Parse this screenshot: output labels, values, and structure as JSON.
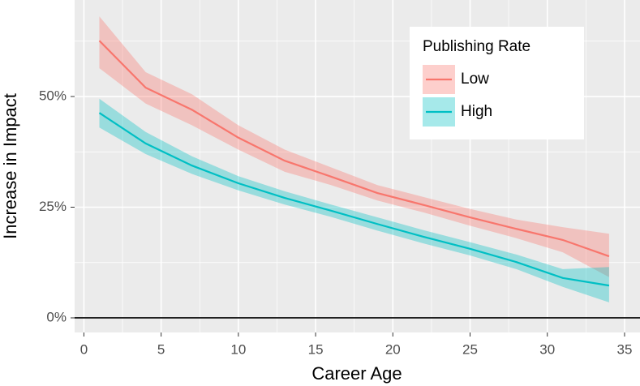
{
  "chart_data": {
    "type": "line",
    "x_label": "Career Age",
    "y_label": "Increase in Impact",
    "legend_title": "Publishing Rate",
    "x": [
      1,
      4,
      7,
      10,
      13,
      16,
      19,
      22,
      25,
      28,
      31,
      34
    ],
    "series": [
      {
        "name": "Low",
        "color": "#f8766d",
        "values": [
          62.6,
          52,
          47,
          40.7,
          35.5,
          31.9,
          28.2,
          25.5,
          22.7,
          20.1,
          17.6,
          13.9
        ],
        "lower": [
          56.4,
          48.4,
          43.5,
          38,
          33,
          30,
          26.5,
          23.8,
          20.8,
          18,
          14.8,
          9.2
        ],
        "upper": [
          68.1,
          55.5,
          50.5,
          43.5,
          38,
          34,
          30,
          27.3,
          24.6,
          22.2,
          20.5,
          19
        ]
      },
      {
        "name": "High",
        "color": "#00bfc4",
        "values": [
          46.3,
          39.4,
          34.4,
          30.4,
          27.1,
          24.2,
          21.2,
          18.3,
          15.6,
          12.6,
          9,
          7.3
        ],
        "lower": [
          43,
          37,
          32.5,
          28.8,
          25.6,
          22.8,
          19.7,
          16.8,
          14.1,
          11,
          7,
          3.5
        ],
        "upper": [
          49.5,
          42,
          36.5,
          32,
          28.6,
          25.6,
          22.7,
          19.8,
          17.1,
          14.3,
          11,
          11.5
        ]
      }
    ],
    "xlim": [
      -0.6,
      36
    ],
    "ylim": [
      -3.3,
      71.8
    ],
    "xticks": [
      0,
      5,
      10,
      15,
      20,
      25,
      30,
      35
    ],
    "yticks": [
      {
        "value": 0,
        "label": "0%"
      },
      {
        "value": 25,
        "label": "25%"
      },
      {
        "value": 50,
        "label": "50%"
      }
    ],
    "hline": 0,
    "grid": true,
    "legend_position": "top-right"
  }
}
